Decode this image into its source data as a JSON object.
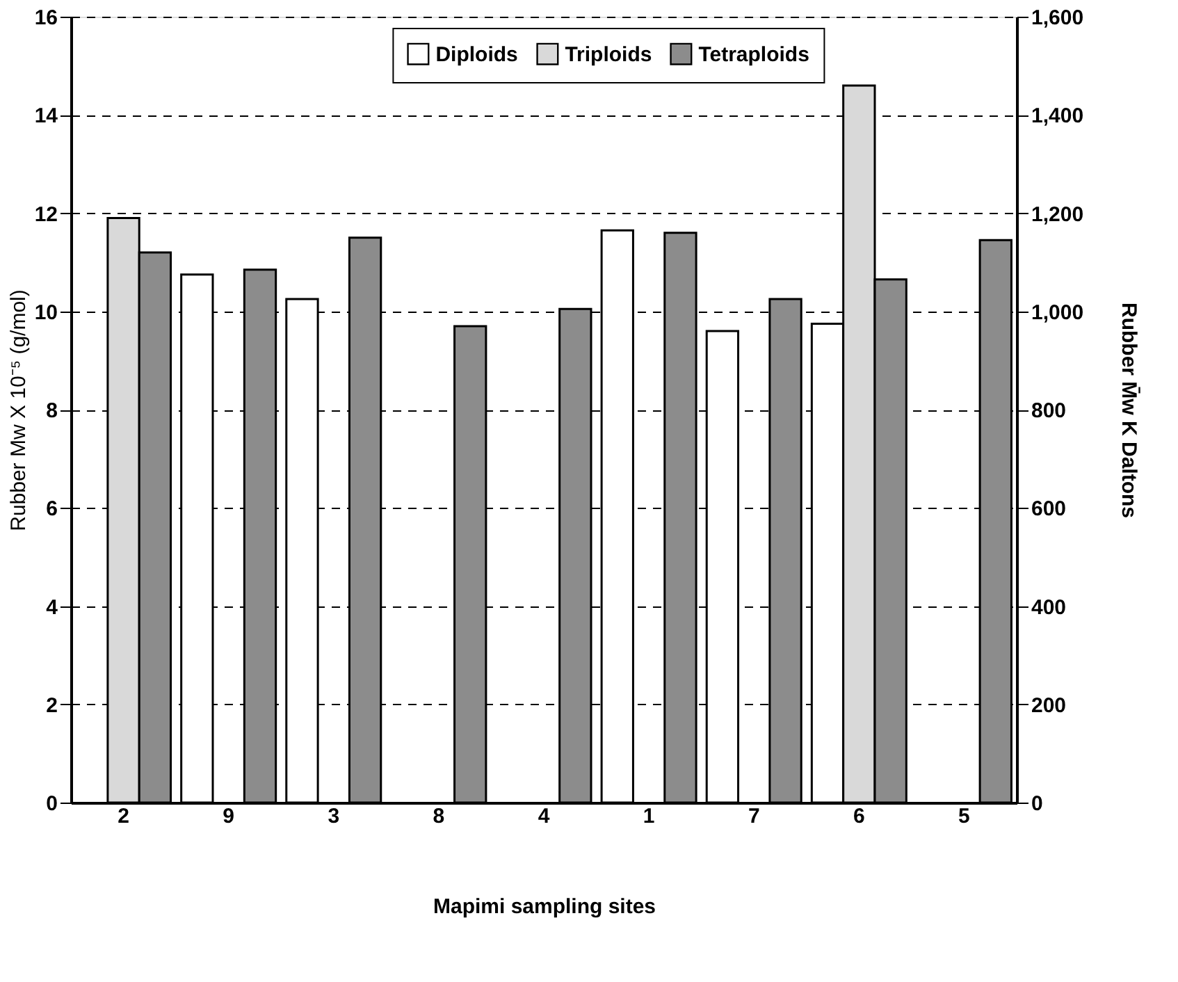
{
  "chart_data": {
    "type": "bar",
    "xlabel": "Mapimi sampling sites",
    "ylabel": "Rubber Mw X 10⁻⁵  (g/mol)",
    "y2label": "Rubber M̄w K Daltons",
    "categories": [
      "2",
      "9",
      "3",
      "8",
      "4",
      "1",
      "7",
      "6",
      "5"
    ],
    "series": [
      {
        "name": "Diploids",
        "color": "#ffffff",
        "values": [
          null,
          10.75,
          10.25,
          null,
          null,
          11.65,
          9.6,
          9.75,
          null
        ]
      },
      {
        "name": "Triploids",
        "color": "#d9d9d9",
        "values": [
          11.9,
          null,
          null,
          null,
          null,
          null,
          null,
          14.6,
          null
        ]
      },
      {
        "name": "Tetraploids",
        "color": "#8c8c8c",
        "values": [
          11.2,
          10.85,
          11.5,
          9.7,
          10.05,
          11.6,
          10.25,
          10.65,
          11.45
        ]
      }
    ],
    "ylim": [
      0,
      16
    ],
    "yticks": [
      0,
      2,
      4,
      6,
      8,
      10,
      12,
      14,
      16
    ],
    "y2lim": [
      0,
      1600
    ],
    "y2ticks": [
      0,
      200,
      400,
      600,
      800,
      {
        "value": 1000,
        "label": "1,000"
      },
      {
        "value": 1200,
        "label": "1,200"
      },
      {
        "value": 1400,
        "label": "1,400"
      },
      {
        "value": 1600,
        "label": "1,600"
      }
    ],
    "grid": "y",
    "legend": "top"
  }
}
